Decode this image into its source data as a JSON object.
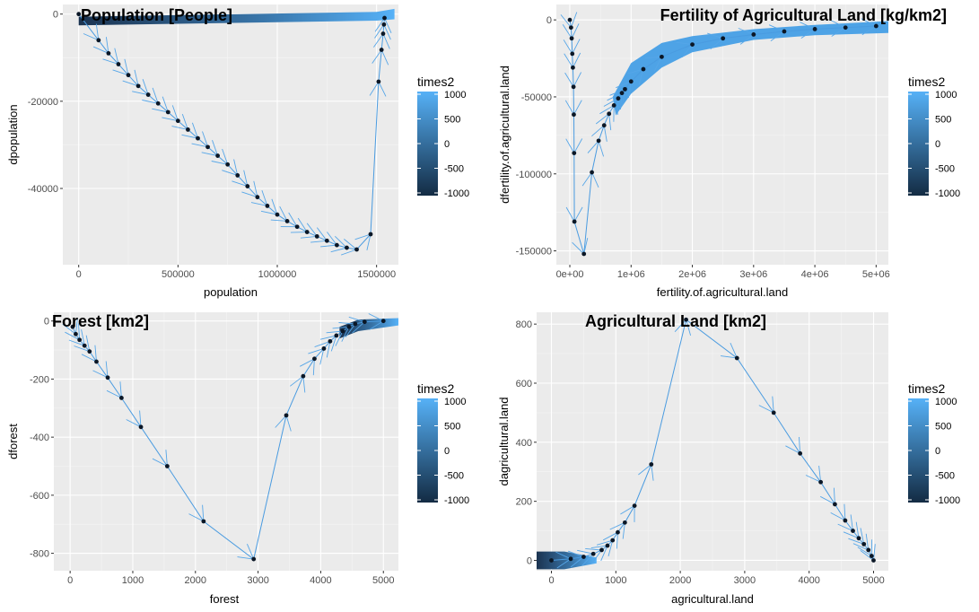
{
  "legend": {
    "title": "times2",
    "ticks": [
      1000,
      500,
      0,
      -500,
      -1000
    ],
    "colors": [
      "#132B43",
      "#56B1F7"
    ]
  },
  "chart_data": [
    {
      "type": "phase-portrait",
      "title": "Population [People]",
      "xlabel": "population",
      "ylabel": "dpopulation",
      "xlim": [
        -80000,
        1610000
      ],
      "ylim": [
        -57500,
        2200
      ],
      "xticks": [
        0,
        500000,
        1000000,
        1500000
      ],
      "xtick_labels": [
        "0",
        "500000",
        "1000000",
        "1500000"
      ],
      "yticks": [
        0,
        -20000,
        -40000
      ],
      "ytick_labels": [
        "0",
        "-20000",
        "-40000"
      ],
      "points": [
        [
          0,
          0
        ],
        [
          100000,
          -6000
        ],
        [
          150000,
          -9000
        ],
        [
          200000,
          -11500
        ],
        [
          250000,
          -14000
        ],
        [
          300000,
          -16500
        ],
        [
          350000,
          -18500
        ],
        [
          400000,
          -20500
        ],
        [
          450000,
          -22500
        ],
        [
          500000,
          -24500
        ],
        [
          550000,
          -26500
        ],
        [
          600000,
          -28500
        ],
        [
          650000,
          -30500
        ],
        [
          700000,
          -32500
        ],
        [
          750000,
          -34500
        ],
        [
          800000,
          -37000
        ],
        [
          850000,
          -39500
        ],
        [
          900000,
          -42000
        ],
        [
          950000,
          -44000
        ],
        [
          1000000,
          -46000
        ],
        [
          1050000,
          -47500
        ],
        [
          1100000,
          -48800
        ],
        [
          1150000,
          -50000
        ],
        [
          1200000,
          -51000
        ],
        [
          1250000,
          -52000
        ],
        [
          1300000,
          -53000
        ],
        [
          1350000,
          -53600
        ],
        [
          1400000,
          -54000
        ],
        [
          1470000,
          -50500
        ],
        [
          1510000,
          -15500
        ],
        [
          1525000,
          -8200
        ],
        [
          1533000,
          -4500
        ],
        [
          1537000,
          -2400
        ],
        [
          1540000,
          -900
        ]
      ],
      "ribbon_top": [
        [
          0,
          -600
        ],
        [
          1500000,
          500
        ],
        [
          1590000,
          1200
        ],
        [
          1590000,
          -1200
        ],
        [
          1500000,
          -1500
        ],
        [
          0,
          -2600
        ]
      ]
    },
    {
      "type": "phase-portrait",
      "title": "Fertility of Agricultural Land [kg/km2]",
      "xlabel": "fertility.of.agricultural.land",
      "ylabel": "dfertility.of.agricultural.land",
      "xlim": [
        -220000,
        5200000
      ],
      "ylim": [
        -159000,
        10000
      ],
      "xticks": [
        0,
        1000000,
        2000000,
        3000000,
        4000000,
        5000000
      ],
      "xtick_labels": [
        "0e+00",
        "1e+06",
        "2e+06",
        "3e+06",
        "4e+06",
        "5e+06"
      ],
      "yticks": [
        0,
        -50000,
        -100000,
        -150000
      ],
      "ytick_labels": [
        "0",
        "-50000",
        "-100000",
        "-150000"
      ],
      "points": [
        [
          0,
          0
        ],
        [
          20000,
          -5000
        ],
        [
          30000,
          -12000
        ],
        [
          40000,
          -22000
        ],
        [
          50000,
          -31000
        ],
        [
          60000,
          -43500
        ],
        [
          65000,
          -61500
        ],
        [
          70000,
          -86500
        ],
        [
          75000,
          -131000
        ],
        [
          230000,
          -152000
        ],
        [
          360000,
          -99000
        ],
        [
          470000,
          -78500
        ],
        [
          560000,
          -68500
        ],
        [
          640000,
          -61000
        ],
        [
          720000,
          -55500
        ],
        [
          790000,
          -51000
        ],
        [
          850000,
          -47500
        ],
        [
          900000,
          -45000
        ],
        [
          1000000,
          -40000
        ],
        [
          1200000,
          -32000
        ],
        [
          1500000,
          -24000
        ],
        [
          2000000,
          -16000
        ],
        [
          2500000,
          -12000
        ],
        [
          3000000,
          -9500
        ],
        [
          3500000,
          -7500
        ],
        [
          4000000,
          -6000
        ],
        [
          4500000,
          -5000
        ],
        [
          5000000,
          -4000
        ]
      ],
      "ribbon_upper": [
        [
          700000,
          -50000
        ],
        [
          1000000,
          -28000
        ],
        [
          1500000,
          -15000
        ],
        [
          2000000,
          -10500
        ],
        [
          3000000,
          -6000
        ],
        [
          4000000,
          -3200
        ],
        [
          5200000,
          -800
        ]
      ],
      "ribbon_lower": [
        [
          5200000,
          -8500
        ],
        [
          4000000,
          -10000
        ],
        [
          3000000,
          -13000
        ],
        [
          2000000,
          -21000
        ],
        [
          1500000,
          -31000
        ],
        [
          1000000,
          -48000
        ],
        [
          750000,
          -62000
        ]
      ]
    },
    {
      "type": "phase-portrait",
      "title": "Forest [km2]",
      "xlabel": "forest",
      "ylabel": "dforest",
      "xlim": [
        -260,
        5240
      ],
      "ylim": [
        -860,
        30
      ],
      "xticks": [
        0,
        1000,
        2000,
        3000,
        4000,
        5000
      ],
      "xtick_labels": [
        "0",
        "1000",
        "2000",
        "3000",
        "4000",
        "5000"
      ],
      "yticks": [
        0,
        -200,
        -400,
        -600,
        -800
      ],
      "ytick_labels": [
        "0",
        "-200",
        "-400",
        "-600",
        "-800"
      ],
      "points": [
        [
          40,
          -20
        ],
        [
          90,
          -45
        ],
        [
          150,
          -65
        ],
        [
          230,
          -85
        ],
        [
          310,
          -105
        ],
        [
          420,
          -140
        ],
        [
          600,
          -195
        ],
        [
          820,
          -265
        ],
        [
          1130,
          -365
        ],
        [
          1550,
          -500
        ],
        [
          2130,
          -690
        ],
        [
          2930,
          -820
        ],
        [
          3450,
          -325
        ],
        [
          3720,
          -190
        ],
        [
          3900,
          -130
        ],
        [
          4050,
          -95
        ],
        [
          4150,
          -70
        ],
        [
          4250,
          -50
        ],
        [
          4350,
          -35
        ],
        [
          4450,
          -20
        ],
        [
          4550,
          -10
        ],
        [
          4700,
          -3
        ],
        [
          5000,
          0
        ]
      ],
      "ribbon": [
        [
          4300,
          -20
        ],
        [
          4600,
          5
        ],
        [
          5240,
          10
        ],
        [
          5240,
          -15
        ],
        [
          4600,
          -35
        ],
        [
          4300,
          -60
        ]
      ]
    },
    {
      "type": "phase-portrait",
      "title": "Agricultural Land [km2]",
      "xlabel": "agricultural.land",
      "ylabel": "dagricultural.land",
      "xlim": [
        -230,
        5230
      ],
      "ylim": [
        -35,
        840
      ],
      "xticks": [
        0,
        1000,
        2000,
        3000,
        4000,
        5000
      ],
      "xtick_labels": [
        "0",
        "1000",
        "2000",
        "3000",
        "4000",
        "5000"
      ],
      "yticks": [
        0,
        200,
        400,
        600,
        800
      ],
      "ytick_labels": [
        "0",
        "200",
        "400",
        "600",
        "800"
      ],
      "points": [
        [
          0,
          0
        ],
        [
          300,
          5
        ],
        [
          500,
          12
        ],
        [
          650,
          22
        ],
        [
          780,
          35
        ],
        [
          870,
          50
        ],
        [
          950,
          68
        ],
        [
          1030,
          95
        ],
        [
          1140,
          128
        ],
        [
          1290,
          185
        ],
        [
          1550,
          325
        ],
        [
          2090,
          815
        ],
        [
          2880,
          685
        ],
        [
          3450,
          500
        ],
        [
          3860,
          362
        ],
        [
          4180,
          265
        ],
        [
          4400,
          190
        ],
        [
          4560,
          135
        ],
        [
          4680,
          100
        ],
        [
          4770,
          75
        ],
        [
          4850,
          55
        ],
        [
          4920,
          35
        ],
        [
          4970,
          15
        ],
        [
          5000,
          0
        ]
      ],
      "ribbon": [
        [
          -230,
          30
        ],
        [
          200,
          30
        ],
        [
          700,
          10
        ],
        [
          700,
          -10
        ],
        [
          200,
          -30
        ],
        [
          -230,
          -30
        ]
      ]
    }
  ]
}
